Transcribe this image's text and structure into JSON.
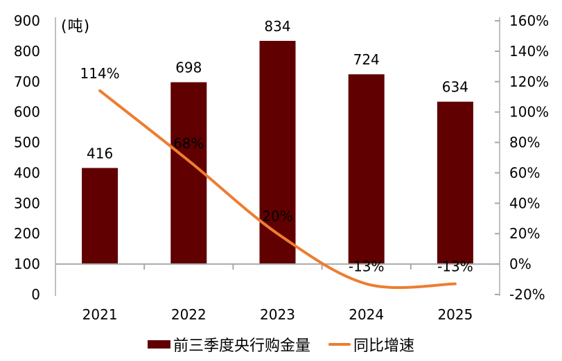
{
  "chart_data": {
    "type": "bar",
    "title": "",
    "categories": [
      "2021",
      "2022",
      "2023",
      "2024",
      "2025"
    ],
    "series": [
      {
        "name": "前三季度央行购金量",
        "kind": "bar",
        "axis": "left",
        "color": "#600000",
        "values": [
          416,
          698,
          834,
          724,
          634
        ],
        "data_labels": [
          "416",
          "698",
          "834",
          "724",
          "634"
        ]
      },
      {
        "name": "同比增速",
        "kind": "line",
        "axis": "right",
        "color": "#ED7D31",
        "values": [
          114,
          68,
          20,
          -13,
          -13
        ],
        "data_labels": [
          "114%",
          "68%",
          "20%",
          "-13%",
          "-13%"
        ]
      }
    ],
    "left_axis": {
      "unit_label": "(吨)",
      "min": 0,
      "max": 900,
      "step": 100,
      "tick_labels": [
        "900",
        "800",
        "700",
        "600",
        "500",
        "400",
        "300",
        "200",
        "100",
        "0"
      ]
    },
    "right_axis": {
      "min": -20,
      "max": 160,
      "step": 20,
      "tick_labels": [
        "160%",
        "140%",
        "120%",
        "100%",
        "80%",
        "60%",
        "40%",
        "20%",
        "0%",
        "-20%"
      ]
    },
    "baseline_at_right_axis_pct": 0,
    "grid": false,
    "legend_position": "bottom",
    "colors": {
      "axis_line": "#C0C0C0",
      "baseline": "#A9A9A9",
      "tick": "#A9A9A9",
      "text": "#000000"
    }
  }
}
